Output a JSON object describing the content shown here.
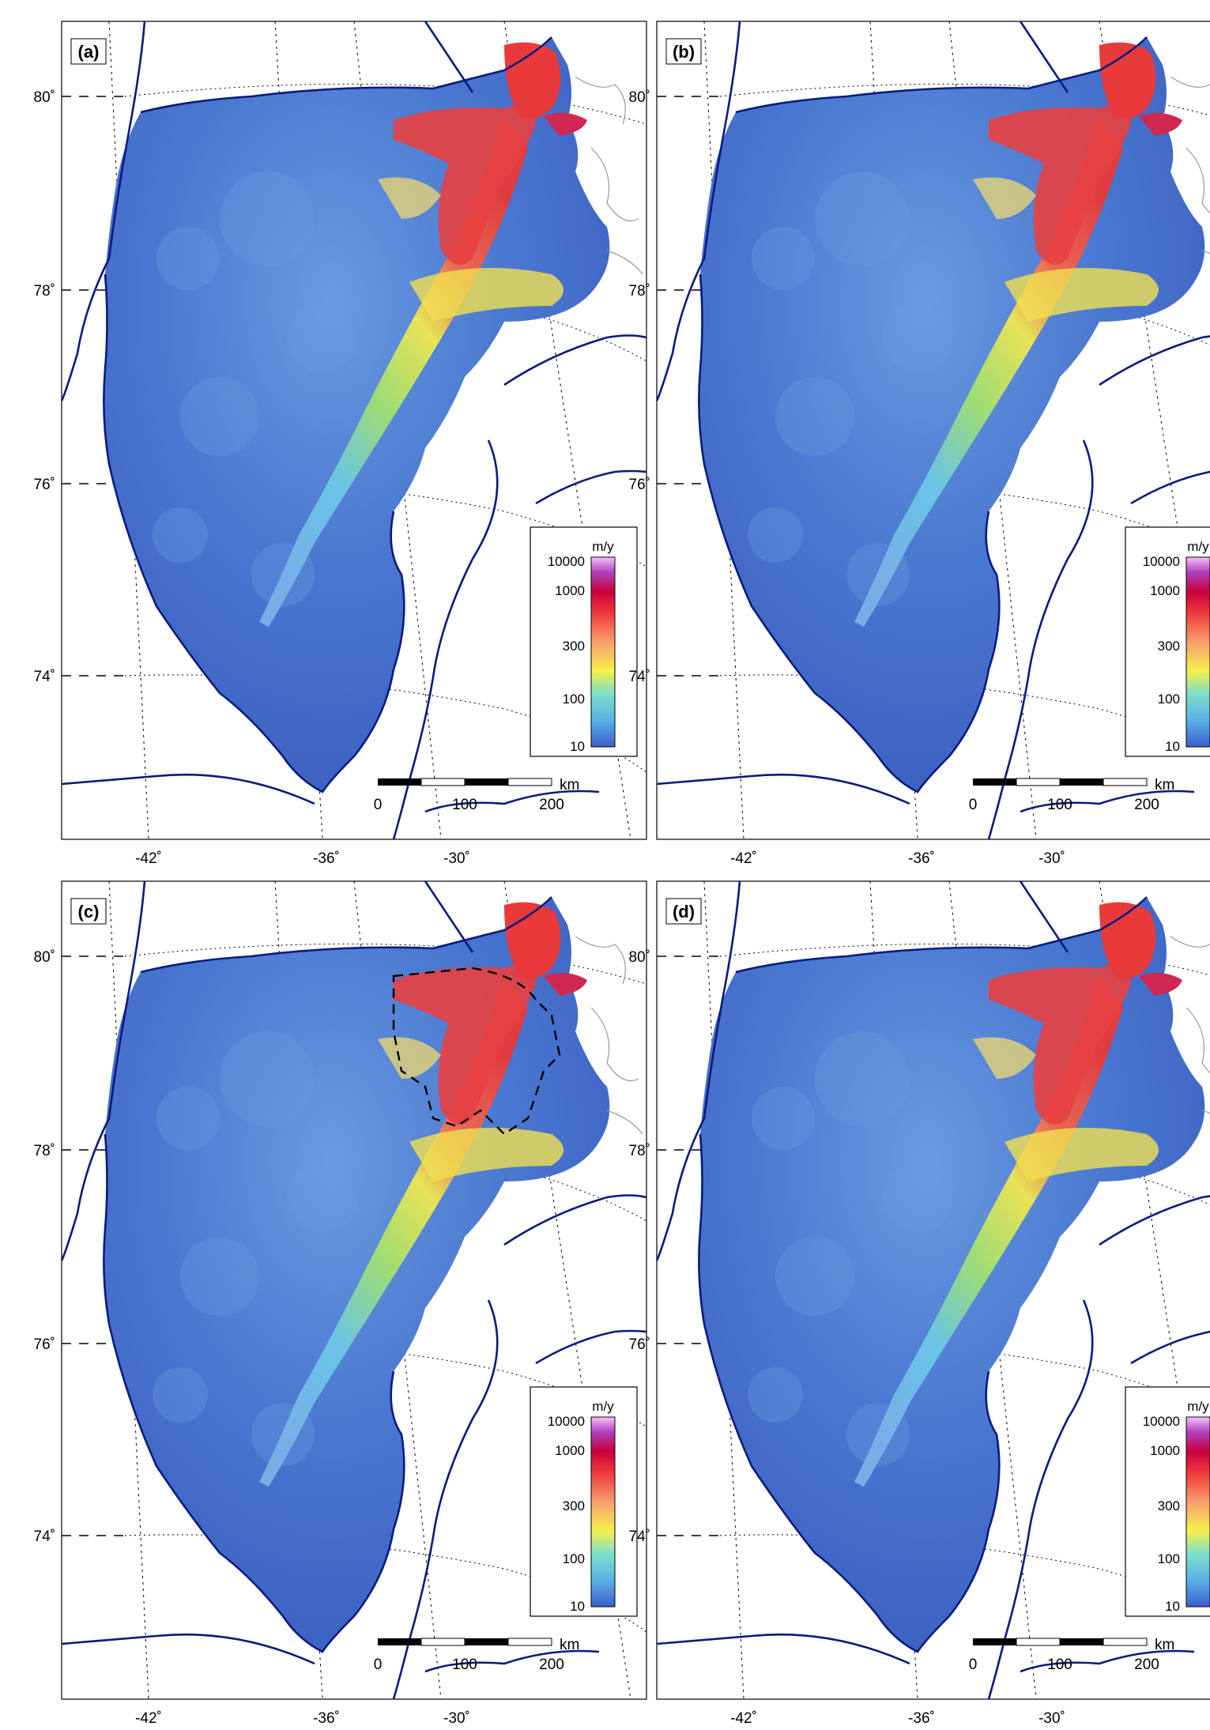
{
  "figure": {
    "panels": [
      {
        "id": "a",
        "label": "(a)"
      },
      {
        "id": "b",
        "label": "(b)"
      },
      {
        "id": "c",
        "label": "(c)"
      },
      {
        "id": "d",
        "label": "(d)"
      }
    ],
    "lat_labels": [
      "80˚",
      "78˚",
      "76˚",
      "74˚"
    ],
    "lon_labels": [
      "-42˚",
      "-36˚",
      "-30˚"
    ],
    "colorbar": {
      "unit": "m/y",
      "ticks": [
        "10000",
        "1000",
        "300",
        "100",
        "10"
      ],
      "colors": [
        "#3a5fcd",
        "#5ab0e8",
        "#7ee0c8",
        "#f5f04a",
        "#f8a070",
        "#f03c3c",
        "#c8003c",
        "#b040c0",
        "#f8c0f8"
      ]
    },
    "scalebar": {
      "unit": "km",
      "ticks": [
        "0",
        "100",
        "200"
      ]
    },
    "colors": {
      "ice_base": "#3c64c8",
      "coast": "#0a1a80",
      "fast_flow": "#e83a3a",
      "mid_flow": "#f0e850",
      "slow_flow": "#6aa8e8"
    }
  }
}
